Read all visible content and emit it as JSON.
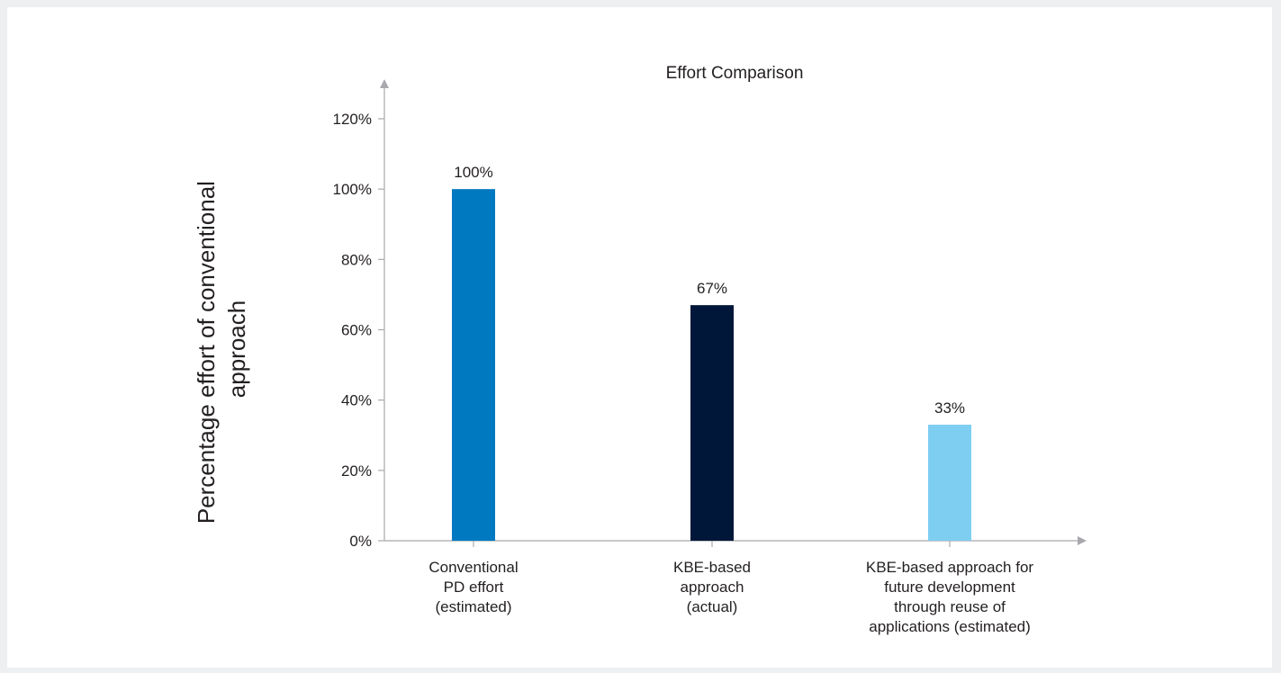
{
  "chart_data": {
    "type": "bar",
    "title": "Effort Comparison",
    "ylabel": [
      "Percentage effort of conventional",
      "approach"
    ],
    "xlabel": "",
    "ylim": [
      0,
      120
    ],
    "yticks": [
      0,
      20,
      40,
      60,
      80,
      100,
      120
    ],
    "ytick_format": "{v}%",
    "categories": [
      [
        "Conventional",
        "PD effort",
        "(estimated)"
      ],
      [
        "KBE-based",
        "approach",
        "(actual)"
      ],
      [
        "KBE-based approach for",
        "future development",
        "through reuse of",
        "applications (estimated)"
      ]
    ],
    "values": [
      100,
      67,
      33
    ],
    "data_labels": [
      "100%",
      "67%",
      "33%"
    ],
    "colors": [
      "#0079c1",
      "#00173a",
      "#7ecef2"
    ],
    "grid": false,
    "legend": "none"
  }
}
